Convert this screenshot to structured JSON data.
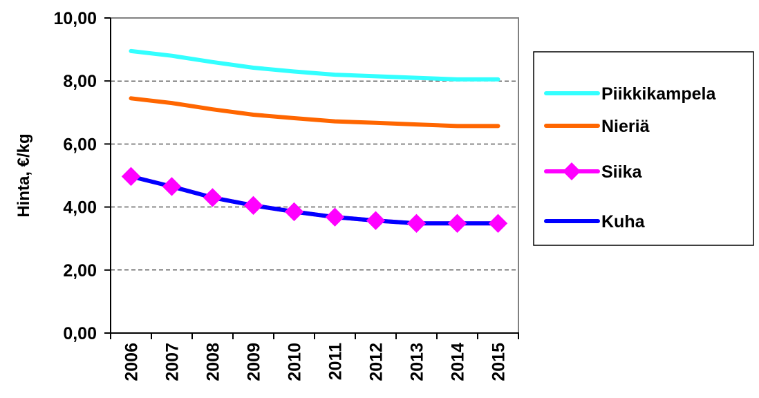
{
  "chart_data": {
    "type": "line",
    "title": "",
    "xlabel": "",
    "ylabel": "Hinta, €/kg",
    "x": [
      "2006",
      "2007",
      "2008",
      "2009",
      "2010",
      "2011",
      "2012",
      "2013",
      "2014",
      "2015"
    ],
    "ylim": [
      0,
      10
    ],
    "yticks": [
      "0,00",
      "2,00",
      "4,00",
      "6,00",
      "8,00",
      "10,00"
    ],
    "grid": true,
    "legend_position": "right",
    "series": [
      {
        "name": "Piikkikampela",
        "color": "#33ffff",
        "marker": "none",
        "values": [
          8.95,
          8.8,
          8.6,
          8.42,
          8.3,
          8.2,
          8.15,
          8.1,
          8.05,
          8.05
        ]
      },
      {
        "name": "Nieriä",
        "color": "#ff6600",
        "marker": "none",
        "values": [
          7.45,
          7.3,
          7.1,
          6.93,
          6.82,
          6.72,
          6.67,
          6.62,
          6.57,
          6.57
        ]
      },
      {
        "name": "Siika",
        "color": "#ff00ff",
        "marker": "diamond",
        "values": [
          4.97,
          4.65,
          4.3,
          4.05,
          3.85,
          3.68,
          3.57,
          3.48,
          3.48,
          3.48
        ]
      },
      {
        "name": "Kuha",
        "color": "#0000ff",
        "marker": "none",
        "values": [
          4.97,
          4.65,
          4.3,
          4.05,
          3.85,
          3.68,
          3.57,
          3.48,
          3.48,
          3.48
        ]
      }
    ]
  }
}
